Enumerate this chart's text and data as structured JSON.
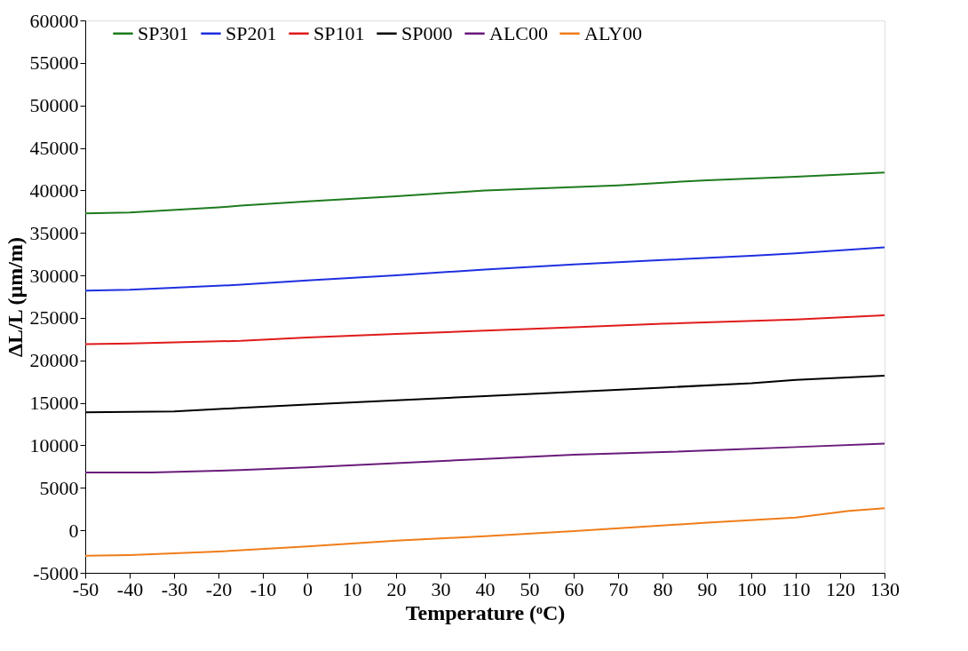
{
  "chart_data": {
    "type": "line",
    "xlabel": "Temperature (ᵒC)",
    "ylabel": "ΔL/L (µm/m)",
    "xlim": [
      -50,
      130
    ],
    "xticks": [
      -50,
      -40,
      -30,
      -20,
      -10,
      0,
      10,
      20,
      30,
      40,
      50,
      60,
      70,
      80,
      90,
      100,
      110,
      120,
      130
    ],
    "ylim": [
      -5000,
      60000
    ],
    "yticks": [
      -5000,
      0,
      5000,
      10000,
      15000,
      20000,
      25000,
      30000,
      35000,
      40000,
      45000,
      50000,
      55000,
      60000
    ],
    "grid": false,
    "legend": "top",
    "marker": "none",
    "line_style": "solid",
    "series": [
      {
        "name": "SP301",
        "color": "#1e7b1e",
        "x": [
          -50,
          -40,
          -20,
          -15,
          0,
          20,
          40,
          70,
          90,
          110,
          130
        ],
        "values": [
          37300,
          37400,
          38000,
          38200,
          38700,
          39300,
          40000,
          40600,
          41200,
          41600,
          42100
        ]
      },
      {
        "name": "SP201",
        "color": "#1f2fe0",
        "x": [
          -50,
          -40,
          -15,
          0,
          20,
          40,
          60,
          80,
          100,
          110,
          130
        ],
        "values": [
          28200,
          28300,
          28900,
          29400,
          30000,
          30700,
          31300,
          31800,
          32300,
          32600,
          33300
        ]
      },
      {
        "name": "SP101",
        "color": "#e01b1b",
        "x": [
          -50,
          -40,
          -15,
          0,
          20,
          40,
          60,
          80,
          110,
          130
        ],
        "values": [
          21900,
          22000,
          22300,
          22700,
          23100,
          23500,
          23900,
          24300,
          24800,
          25300
        ]
      },
      {
        "name": "SP000",
        "color": "#000000",
        "x": [
          -50,
          -30,
          -15,
          0,
          20,
          40,
          60,
          80,
          100,
          110,
          130
        ],
        "values": [
          13900,
          14000,
          14400,
          14800,
          15300,
          15800,
          16300,
          16800,
          17300,
          17700,
          18200
        ]
      },
      {
        "name": "ALC00",
        "color": "#6a1b7a",
        "x": [
          -50,
          -35,
          -15,
          0,
          20,
          40,
          60,
          80,
          95,
          110,
          130
        ],
        "values": [
          6800,
          6800,
          7100,
          7400,
          7900,
          8400,
          8900,
          9200,
          9500,
          9800,
          10200
        ]
      },
      {
        "name": "ALY00",
        "color": "#f07d1a",
        "x": [
          -50,
          -40,
          -20,
          0,
          20,
          40,
          60,
          75,
          90,
          110,
          122,
          130
        ],
        "values": [
          -3000,
          -2900,
          -2500,
          -1900,
          -1200,
          -700,
          -100,
          400,
          900,
          1500,
          2300,
          2600
        ]
      }
    ]
  }
}
